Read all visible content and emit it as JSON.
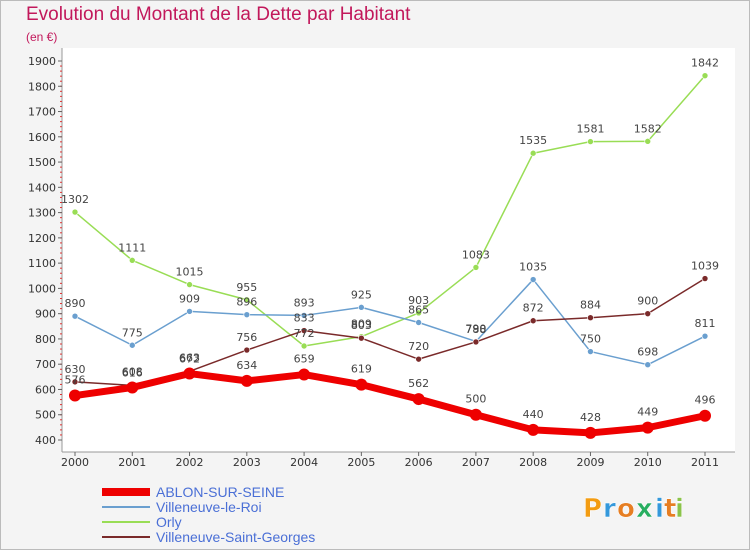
{
  "chart_data": {
    "type": "line",
    "title": "Evolution du Montant de la Dette par Habitant",
    "subtitle": "(en €)",
    "x": [
      "2000",
      "2001",
      "2002",
      "2003",
      "2004",
      "2005",
      "2006",
      "2007",
      "2008",
      "2009",
      "2010",
      "2011"
    ],
    "yticks": [
      "400",
      "500",
      "600",
      "700",
      "800",
      "900",
      "1000",
      "1100",
      "1200",
      "1300",
      "1400",
      "1500",
      "1600",
      "1700",
      "1800",
      "1900"
    ],
    "ylim": [
      400,
      1900
    ],
    "grid": false,
    "legend_position": "bottom-left",
    "series": [
      {
        "name": "ABLON-SUR-SEINE",
        "color": "#ee0000",
        "width": 7,
        "values": [
          576,
          608,
          663,
          634,
          659,
          619,
          562,
          500,
          440,
          428,
          449,
          496
        ]
      },
      {
        "name": "Villeneuve-le-Roi",
        "color": "#6a9fcf",
        "width": 1.5,
        "values": [
          890,
          775,
          909,
          896,
          893,
          925,
          865,
          790,
          1035,
          750,
          698,
          811
        ]
      },
      {
        "name": "Orly",
        "color": "#99dd55",
        "width": 1.5,
        "values": [
          1302,
          1111,
          1015,
          955,
          772,
          809,
          903,
          1083,
          1535,
          1581,
          1582,
          1842
        ]
      },
      {
        "name": "Villeneuve-Saint-Georges",
        "color": "#7a2a2a",
        "width": 1.5,
        "values": [
          630,
          616,
          672,
          756,
          833,
          803,
          720,
          788,
          872,
          884,
          900,
          1039
        ]
      }
    ]
  },
  "legend_color": "#4a6fd6",
  "logo": {
    "letters": [
      "P",
      "r",
      "o",
      "x",
      "i",
      "t",
      "i"
    ],
    "colors": [
      "#f39c12",
      "#3498db",
      "#e67e22",
      "#27ae60",
      "#3498db",
      "#e67e22",
      "#8bc34a"
    ]
  }
}
